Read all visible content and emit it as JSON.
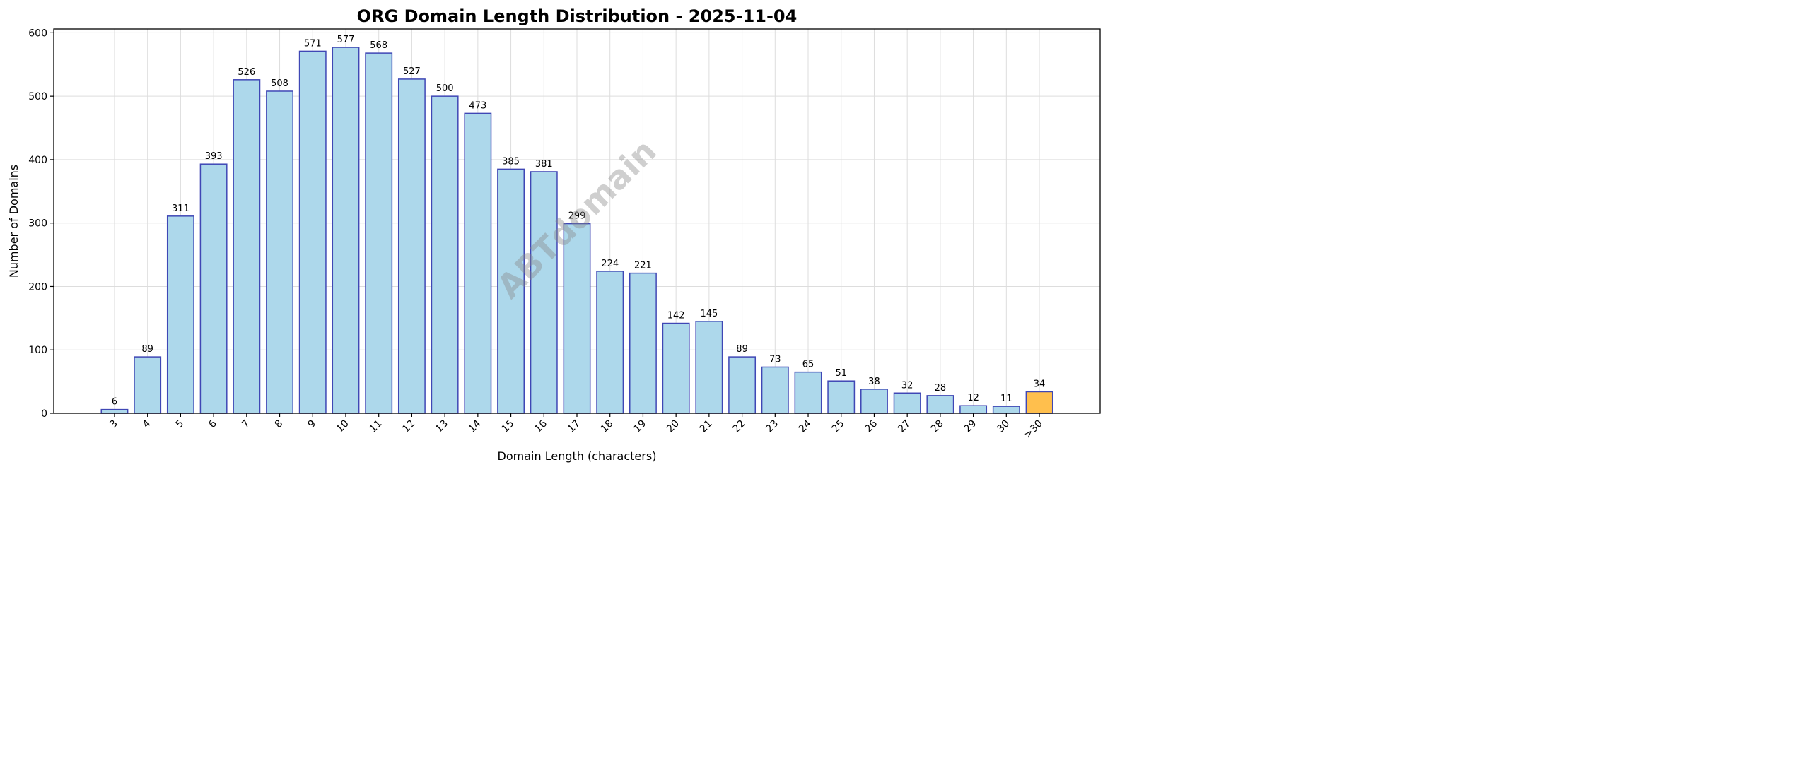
{
  "chart_data": {
    "type": "bar",
    "title": "ORG Domain Length Distribution - 2025-11-04",
    "xlabel": "Domain Length (characters)",
    "ylabel": "Number of Domains",
    "categories": [
      "3",
      "4",
      "5",
      "6",
      "7",
      "8",
      "9",
      "10",
      "11",
      "12",
      "13",
      "14",
      "15",
      "16",
      "17",
      "18",
      "19",
      "20",
      "21",
      "22",
      "23",
      "24",
      "25",
      "26",
      "27",
      "28",
      "29",
      "30",
      ">30"
    ],
    "values": [
      6,
      89,
      311,
      393,
      526,
      508,
      571,
      577,
      568,
      527,
      500,
      473,
      385,
      381,
      299,
      224,
      221,
      142,
      145,
      89,
      73,
      65,
      51,
      38,
      32,
      28,
      12,
      11,
      34
    ],
    "ylim": [
      0,
      606
    ],
    "yticks": [
      0,
      100,
      200,
      300,
      400,
      500,
      600
    ],
    "grid": true,
    "bar_color": "#ADD8EB",
    "highlight_color": "#FFBF4D",
    "highlight_category": ">30",
    "edge_color": "#3F47B5",
    "data_labels": true,
    "watermark": "ABTdomain"
  }
}
